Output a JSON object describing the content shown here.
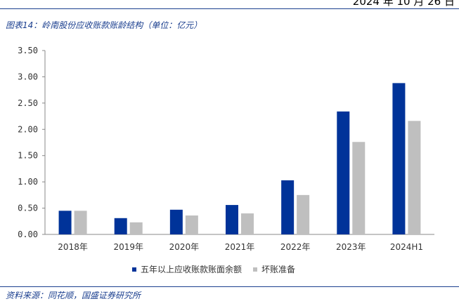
{
  "header": {
    "date": "2024 年 10 月 26 日"
  },
  "figure": {
    "title": "图表14：岭南股份应收账款账龄结构（单位：亿元）",
    "source": "资料来源：同花顺，国盛证券研究所"
  },
  "colors": {
    "series1": "#003399",
    "series2": "#bfbfbf",
    "rule": "#1b3f8f"
  },
  "chart_data": {
    "type": "bar",
    "title": "图表14：岭南股份应收账款账龄结构（单位：亿元）",
    "xlabel": "",
    "ylabel": "",
    "categories": [
      "2018年",
      "2019年",
      "2020年",
      "2021年",
      "2022年",
      "2023年",
      "2024H1"
    ],
    "ylim": [
      0,
      3.5
    ],
    "yticks": [
      "0.00",
      "0.50",
      "1.00",
      "1.50",
      "2.00",
      "2.50",
      "3.00",
      "3.50"
    ],
    "grid": false,
    "legend_position": "bottom",
    "series": [
      {
        "name": "五年以上应收账款账面余额",
        "values": [
          0.45,
          0.31,
          0.47,
          0.56,
          1.03,
          2.34,
          2.88
        ]
      },
      {
        "name": "坏账准备",
        "values": [
          0.45,
          0.23,
          0.36,
          0.4,
          0.75,
          1.76,
          2.16
        ]
      }
    ]
  }
}
